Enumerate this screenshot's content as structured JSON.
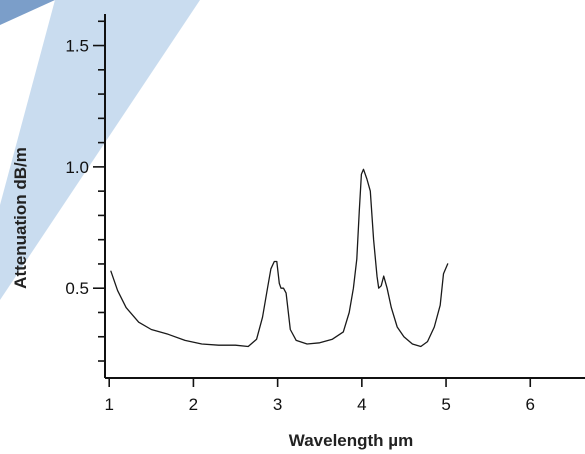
{
  "chart_data": {
    "type": "line",
    "title": "",
    "xlabel": "Wavelength µm",
    "ylabel": "Attenuation dB/m",
    "xlim": [
      0.95,
      6.65
    ],
    "ylim": [
      0.13,
      1.63
    ],
    "x_ticks": [
      1,
      2,
      3,
      4,
      5,
      6
    ],
    "x_tick_labels": [
      "1",
      "2",
      "3",
      "4",
      "5",
      "6"
    ],
    "y_ticks": [
      0.5,
      1.0,
      1.5
    ],
    "y_tick_labels": [
      "0.5",
      "1.0",
      "1.5"
    ],
    "y_minor_step": 0.1,
    "grid": false,
    "legend": "none",
    "colors": {
      "line": "#1a1a1a",
      "axis": "#111111",
      "decor_band": "#9cbfe2"
    },
    "series": [
      {
        "x": [
          1.02,
          1.1,
          1.2,
          1.35,
          1.5,
          1.7,
          1.9,
          2.1,
          2.3,
          2.5,
          2.65,
          2.75,
          2.82,
          2.88,
          2.92,
          2.96,
          2.99,
          3.02,
          3.04,
          3.07,
          3.1,
          3.15,
          3.22,
          3.35,
          3.5,
          3.65,
          3.78,
          3.85,
          3.9,
          3.94,
          3.97,
          3.995,
          4.02,
          4.06,
          4.1,
          4.14,
          4.18,
          4.2,
          4.23,
          4.26,
          4.3,
          4.35,
          4.42,
          4.5,
          4.6,
          4.7,
          4.78,
          4.86,
          4.93,
          4.97,
          5.02
        ],
        "y": [
          0.57,
          0.49,
          0.42,
          0.36,
          0.33,
          0.31,
          0.285,
          0.27,
          0.265,
          0.265,
          0.26,
          0.29,
          0.38,
          0.5,
          0.58,
          0.61,
          0.61,
          0.52,
          0.5,
          0.5,
          0.48,
          0.33,
          0.285,
          0.27,
          0.275,
          0.29,
          0.32,
          0.4,
          0.5,
          0.62,
          0.82,
          0.97,
          0.99,
          0.95,
          0.9,
          0.7,
          0.55,
          0.5,
          0.51,
          0.55,
          0.5,
          0.42,
          0.34,
          0.3,
          0.27,
          0.26,
          0.28,
          0.34,
          0.43,
          0.56,
          0.6
        ]
      }
    ]
  }
}
